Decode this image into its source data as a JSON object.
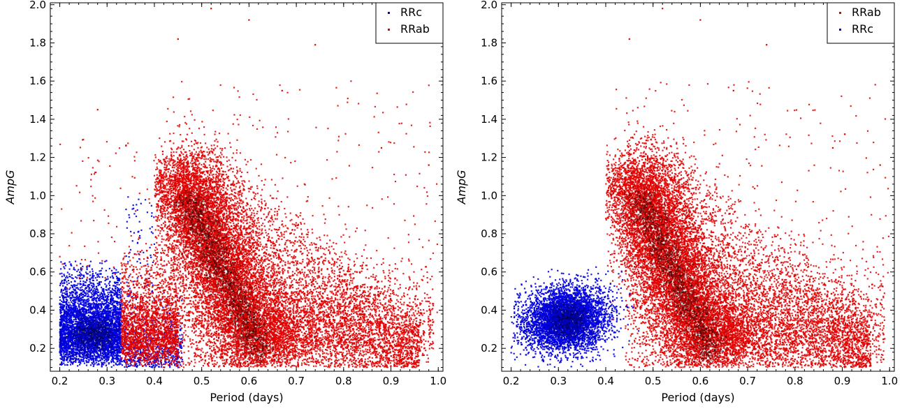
{
  "chart_data": [
    {
      "type": "scatter",
      "xlabel": "Period (days)",
      "ylabel": "AmpG",
      "xlim": [
        0.18,
        1.01
      ],
      "ylim": [
        0.08,
        2.01
      ],
      "xticks": [
        "0.2",
        "0.3",
        "0.4",
        "0.5",
        "0.6",
        "0.7",
        "0.8",
        "0.9",
        "1.0"
      ],
      "yticks": [
        "0.2",
        "0.4",
        "0.6",
        "0.8",
        "1.0",
        "1.2",
        "1.4",
        "1.6",
        "1.8",
        "2.0"
      ],
      "legend_position": "top-right",
      "legend": [
        "RRc",
        "RRab"
      ],
      "series": [
        {
          "name": "RRc",
          "color": "#0000e0",
          "marker": "point",
          "regions": [
            {
              "x": [
                0.2,
                0.33
              ],
              "y": [
                0.1,
                0.65
              ],
              "peak_y": 0.3
            },
            {
              "x": [
                0.33,
                0.46
              ],
              "y": [
                0.1,
                0.45
              ],
              "sparse": true
            }
          ]
        },
        {
          "name": "RRab",
          "color": "#e00000",
          "marker": "point",
          "regions": [
            {
              "ridge_from": [
                0.45,
                1.15
              ],
              "ridge_to": [
                0.63,
                0.15
              ],
              "x": [
                0.42,
                0.95
              ],
              "y": [
                0.1,
                1.4
              ]
            },
            {
              "x": [
                0.33,
                0.45
              ],
              "y": [
                0.1,
                0.6
              ],
              "dense": true
            },
            {
              "outliers": [
                [
                  0.52,
                  1.98
                ],
                [
                  0.6,
                  1.92
                ],
                [
                  0.74,
                  1.79
                ],
                [
                  0.28,
                  1.45
                ],
                [
                  0.88,
                  1.25
                ],
                [
                  0.98,
                  1.16
                ],
                [
                  0.45,
                  1.82
                ],
                [
                  0.67,
                  1.55
                ]
              ]
            }
          ]
        }
      ]
    },
    {
      "type": "scatter",
      "xlabel": "Period (days)",
      "ylabel": "AmpG",
      "xlim": [
        0.18,
        1.01
      ],
      "ylim": [
        0.08,
        2.01
      ],
      "xticks": [
        "0.2",
        "0.3",
        "0.4",
        "0.5",
        "0.6",
        "0.7",
        "0.8",
        "0.9",
        "1.0"
      ],
      "yticks": [
        "0.2",
        "0.4",
        "0.6",
        "0.8",
        "1.0",
        "1.2",
        "1.4",
        "1.6",
        "1.8",
        "2.0"
      ],
      "legend_position": "top-right",
      "legend": [
        "RRab",
        "RRc"
      ],
      "series": [
        {
          "name": "RRab",
          "color": "#e00000",
          "marker": "point",
          "regions": [
            {
              "ridge_from": [
                0.45,
                1.15
              ],
              "ridge_to": [
                0.63,
                0.15
              ],
              "x": [
                0.42,
                0.95
              ],
              "y": [
                0.1,
                1.4
              ]
            },
            {
              "outliers": [
                [
                  0.52,
                  1.98
                ],
                [
                  0.6,
                  1.92
                ],
                [
                  0.74,
                  1.79
                ],
                [
                  0.88,
                  1.25
                ],
                [
                  0.98,
                  1.16
                ],
                [
                  0.45,
                  1.82
                ],
                [
                  0.67,
                  1.55
                ]
              ]
            }
          ]
        },
        {
          "name": "RRc",
          "color": "#0000e0",
          "marker": "point",
          "regions": [
            {
              "center": [
                0.32,
                0.35
              ],
              "x": [
                0.2,
                0.45
              ],
              "y": [
                0.1,
                0.64
              ]
            }
          ]
        }
      ]
    }
  ]
}
